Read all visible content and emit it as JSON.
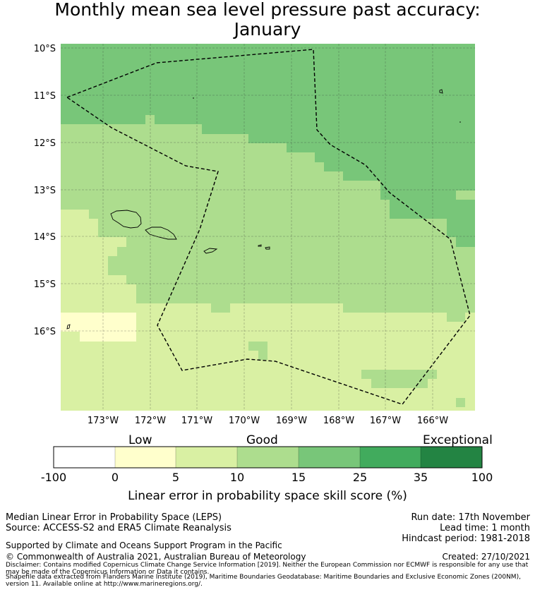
{
  "title_line1": "Monthly mean sea level pressure past accuracy:",
  "title_line2": "January",
  "lat_labels": [
    "10°S",
    "11°S",
    "12°S",
    "13°S",
    "14°S",
    "15°S",
    "16°S"
  ],
  "lon_labels": [
    "173°W",
    "172°W",
    "171°W",
    "170°W",
    "169°W",
    "168°W",
    "167°W",
    "166°W"
  ],
  "colorbar": {
    "category_labels": [
      "Low",
      "Good",
      "Exceptional"
    ],
    "ticks": [
      "-100",
      "0",
      "5",
      "10",
      "15",
      "25",
      "35",
      "100"
    ],
    "colors": [
      "#ffffff",
      "#ffffcc",
      "#d9f0a3",
      "#addd8e",
      "#78c679",
      "#41ab5d",
      "#238443"
    ],
    "title": "Linear error in probability space skill score (%)"
  },
  "footer": {
    "line1": "Median Linear Error in Probability Space (LEPS)",
    "line2": "Source: ACCESS-S2 and ERA5 Climate Reanalysis",
    "run_date": "Run date: 17th November",
    "lead_time": "Lead time: 1 month",
    "hindcast": "Hindcast period: 1981-2018",
    "support": "Supported by Climate and Oceans Support Program in the Pacific",
    "copyright": "© Commonwealth of Australia 2021, Australian Bureau of Meteorology",
    "created": "Created: 27/10/2021",
    "disclaimer1": "Disclaimer: Contains modified Copernicus Climate Change Service Information [2019]. Neither the European Commission nor ECMWF is responsible for any use that may be made of the Copernicus Information or Data it contains.",
    "disclaimer2": "Shapefile data extracted from Flanders Marine Institute (2019), Maritime Boundaries Geodatabase: Maritime Boundaries and Exclusive Economic Zones (200NM), version 11. Available online at http://www.marineregions.org/."
  }
}
